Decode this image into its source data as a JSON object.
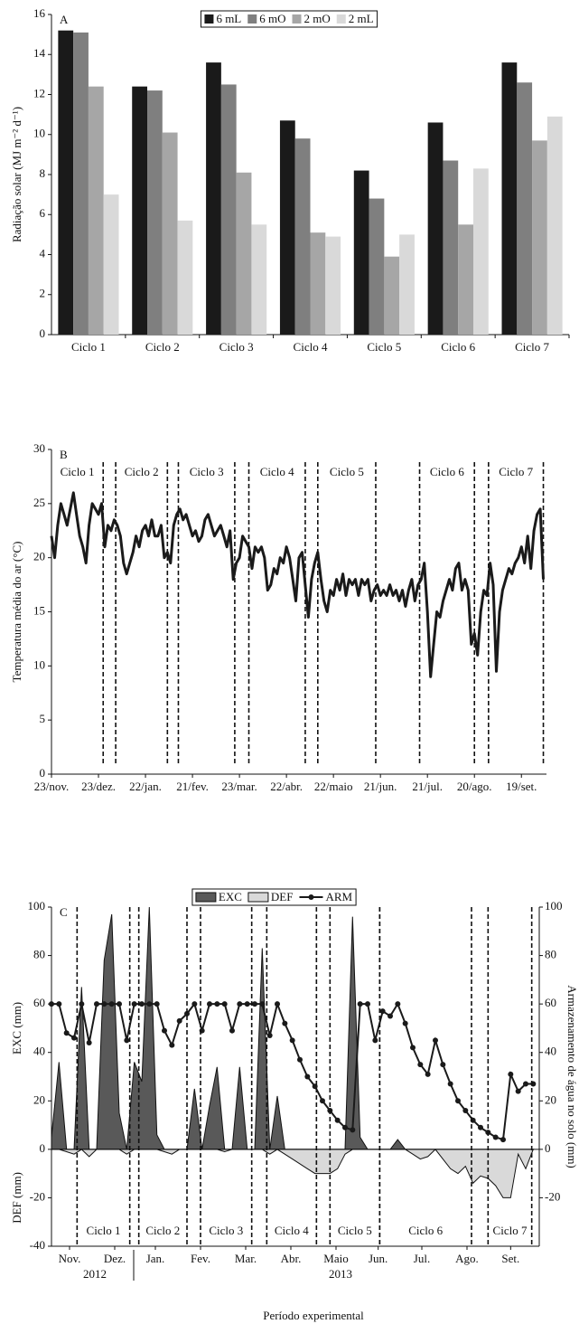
{
  "chart_data": [
    {
      "type": "bar",
      "panel_label": "A",
      "ylabel": "Radiação solar (MJ m⁻² d⁻¹)",
      "categories": [
        "Ciclo 1",
        "Ciclo 2",
        "Ciclo 3",
        "Ciclo 4",
        "Ciclo 5",
        "Ciclo 6",
        "Ciclo 7"
      ],
      "series": [
        {
          "name": "6 mL",
          "color": "#1a1a1a",
          "values": [
            15.2,
            12.4,
            13.6,
            10.7,
            8.2,
            10.6,
            13.6
          ]
        },
        {
          "name": "6 mO",
          "color": "#7f7f7f",
          "values": [
            15.1,
            12.2,
            12.5,
            9.8,
            6.8,
            8.7,
            12.6
          ]
        },
        {
          "name": "2 mO",
          "color": "#a6a6a6",
          "values": [
            12.4,
            10.1,
            8.1,
            5.1,
            3.9,
            5.5,
            9.7
          ]
        },
        {
          "name": "2 mL",
          "color": "#d9d9d9",
          "values": [
            7.0,
            5.7,
            5.5,
            4.9,
            5.0,
            8.3,
            10.9
          ]
        }
      ],
      "ylim": [
        0,
        16
      ],
      "yticks": [
        0,
        2,
        4,
        6,
        8,
        10,
        12,
        14,
        16
      ],
      "legend": "top"
    },
    {
      "type": "line",
      "panel_label": "B",
      "ylabel": "Temperatura média do ar (°C)",
      "x": [
        0,
        2,
        4,
        6,
        8,
        10,
        12,
        14,
        16,
        18,
        20,
        22,
        24,
        26,
        28,
        30,
        32,
        34,
        36,
        38,
        40,
        42,
        44,
        46,
        48,
        50,
        52,
        54,
        56,
        58,
        60,
        62,
        64,
        66,
        68,
        70,
        72,
        74,
        76,
        78,
        80,
        82,
        84,
        86,
        88,
        90,
        92,
        94,
        96,
        98,
        100,
        102,
        104,
        106,
        108,
        110,
        112,
        114,
        116,
        118,
        120,
        122,
        124,
        126,
        128,
        130,
        132,
        134,
        136,
        138,
        140,
        142,
        144,
        146,
        148,
        150,
        152,
        154,
        156,
        158,
        160,
        162,
        164,
        166,
        168,
        170,
        172,
        174,
        176,
        178,
        180,
        182,
        184,
        186,
        188,
        190,
        192,
        194,
        196,
        198,
        200,
        202,
        204,
        206,
        208,
        210,
        212,
        214,
        216,
        218,
        220,
        222,
        224,
        226,
        228,
        230,
        232,
        234,
        236,
        238,
        240,
        242,
        244,
        246,
        248,
        250,
        252,
        254,
        256,
        258,
        260,
        262,
        264,
        266,
        268,
        270,
        272,
        274,
        276,
        278,
        280,
        282,
        284,
        286,
        288,
        290,
        292,
        294,
        296,
        298,
        300,
        302,
        304,
        306,
        308,
        310,
        312,
        314
      ],
      "series": [
        {
          "color": "#1a1a1a",
          "values": [
            22,
            20,
            23,
            25,
            24,
            23,
            24.5,
            26,
            24,
            22,
            21,
            19.5,
            23,
            25,
            24.5,
            24,
            25,
            21,
            23,
            22.5,
            23.5,
            23,
            22,
            19.5,
            18.5,
            19.5,
            20.5,
            22,
            21,
            22.5,
            23,
            22,
            23.5,
            22,
            22,
            23,
            20,
            20.5,
            19.5,
            23,
            24,
            24.5,
            23.5,
            24,
            23,
            22,
            22.5,
            21.5,
            22,
            23.5,
            24,
            23,
            22,
            22.5,
            23,
            22,
            21,
            22.5,
            18,
            19.5,
            20,
            22,
            21.5,
            21,
            19,
            21,
            20.5,
            21,
            20,
            17,
            17.5,
            19,
            18.5,
            20,
            19.5,
            21,
            20,
            18,
            16,
            20,
            20.5,
            17.5,
            14.5,
            18,
            19.5,
            20.5,
            18,
            16,
            15,
            17,
            16.5,
            18,
            17,
            18.5,
            16.5,
            18,
            17.5,
            18,
            16.5,
            18,
            17.5,
            18,
            16,
            17,
            17.5,
            16.5,
            17,
            16.5,
            17.5,
            16.5,
            17,
            16,
            17,
            15.5,
            17,
            18,
            16,
            17.5,
            18,
            19.5,
            15,
            9,
            12,
            15,
            14.5,
            16,
            17,
            18,
            17,
            19,
            19.5,
            17,
            18,
            17,
            12,
            13,
            11,
            15,
            17,
            16.5,
            19.5,
            17.5,
            9.5,
            15,
            17,
            18,
            19,
            18.5,
            19.5,
            20,
            21,
            19.5,
            22,
            19,
            22.5,
            24,
            24.5,
            18
          ]
        }
      ],
      "xlim": [
        0,
        316
      ],
      "xticks": [
        {
          "value": 0,
          "label": "23/nov."
        },
        {
          "value": 30,
          "label": "23/dez."
        },
        {
          "value": 60,
          "label": "22/jan."
        },
        {
          "value": 90,
          "label": "21/fev."
        },
        {
          "value": 120,
          "label": "23/mar."
        },
        {
          "value": 150,
          "label": "22/abr."
        },
        {
          "value": 180,
          "label": "22/maio"
        },
        {
          "value": 210,
          "label": "21/jun."
        },
        {
          "value": 240,
          "label": "21/jul."
        },
        {
          "value": 270,
          "label": "20/ago."
        },
        {
          "value": 300,
          "label": "19/set."
        }
      ],
      "ylim": [
        0,
        30
      ],
      "yticks": [
        0,
        5,
        10,
        15,
        20,
        25,
        30
      ],
      "cycles": [
        {
          "label": "Ciclo 1",
          "start": 0,
          "end": 33
        },
        {
          "label": "Ciclo 2",
          "start": 41,
          "end": 74
        },
        {
          "label": "Ciclo 3",
          "start": 81,
          "end": 117
        },
        {
          "label": "Ciclo 4",
          "start": 126,
          "end": 162
        },
        {
          "label": "Ciclo 5",
          "start": 170,
          "end": 207
        },
        {
          "label": "Ciclo 6",
          "start": 235,
          "end": 270
        },
        {
          "label": "Ciclo 7",
          "start": 279,
          "end": 314
        }
      ]
    },
    {
      "type": "combo",
      "panel_label": "C",
      "ylabel": "EXC (mm)",
      "ylabel_lower": "DEF (mm)",
      "y2label": "Armazenamento de água no solo (mm)",
      "xlabel": "Período experimental",
      "years": [
        "2012",
        "2013"
      ],
      "x": [
        0,
        5,
        10,
        15,
        20,
        25,
        30,
        35,
        40,
        45,
        50,
        55,
        60,
        65,
        70,
        75,
        80,
        85,
        90,
        95,
        100,
        105,
        110,
        115,
        120,
        125,
        130,
        135,
        140,
        145,
        150,
        155,
        160,
        165,
        170,
        175,
        180,
        185,
        190,
        195,
        200,
        205,
        210,
        215,
        220,
        225,
        230,
        235,
        240,
        245,
        250,
        255,
        260,
        265,
        270,
        275,
        280,
        285,
        290,
        295,
        300,
        305,
        310,
        315,
        320
      ],
      "series": [
        {
          "name": "EXC",
          "type": "area",
          "color": "#595959",
          "values": [
            5,
            36,
            0,
            0,
            67,
            0,
            0,
            78,
            97,
            15,
            0,
            36,
            28,
            100,
            6,
            0,
            0,
            0,
            0,
            25,
            0,
            18,
            34,
            0,
            0,
            34,
            0,
            0,
            83,
            0,
            22,
            0,
            0,
            0,
            0,
            0,
            0,
            0,
            0,
            0,
            96,
            5,
            0,
            0,
            0,
            0,
            4,
            0,
            0,
            0,
            0,
            0,
            0,
            0,
            0,
            0,
            0,
            0,
            0,
            0,
            0,
            0,
            0,
            0,
            0
          ]
        },
        {
          "name": "DEF",
          "type": "area",
          "color": "#d9d9d9",
          "values": [
            0,
            0,
            -1,
            -2,
            0,
            -3,
            0,
            0,
            0,
            0,
            -2,
            0,
            0,
            0,
            0,
            -1,
            -2,
            0,
            0,
            0,
            0,
            0,
            0,
            -1,
            0,
            0,
            0,
            0,
            0,
            -2,
            0,
            -2,
            -4,
            -6,
            -8,
            -10,
            -10,
            -10,
            -8,
            -2,
            0,
            0,
            0,
            0,
            0,
            0,
            0,
            0,
            -2,
            -4,
            -3,
            0,
            -4,
            -8,
            -10,
            -7,
            -14,
            -11,
            -12,
            -15,
            -20,
            -20,
            -2,
            -8,
            0
          ]
        },
        {
          "name": "ARM",
          "type": "line",
          "axis": "y2",
          "color": "#1a1a1a",
          "values": [
            60,
            60,
            48,
            46,
            60,
            44,
            60,
            60,
            60,
            60,
            45,
            60,
            60,
            60,
            60,
            49,
            43,
            53,
            56,
            60,
            49,
            60,
            60,
            60,
            49,
            60,
            60,
            60,
            60,
            47,
            60,
            52,
            45,
            37,
            30,
            26,
            20,
            16,
            12,
            9,
            8,
            60,
            60,
            45,
            57,
            55,
            60,
            52,
            42,
            35,
            31,
            45,
            35,
            27,
            20,
            16,
            12,
            9,
            7,
            5,
            4,
            31,
            24,
            27,
            27
          ]
        }
      ],
      "xlim": [
        0,
        324
      ],
      "xticks": [
        {
          "value": 12,
          "label": "Nov."
        },
        {
          "value": 42,
          "label": "Dez."
        },
        {
          "value": 69,
          "label": "Jan."
        },
        {
          "value": 99,
          "label": "Fev."
        },
        {
          "value": 129,
          "label": "Mar."
        },
        {
          "value": 159,
          "label": "Abr."
        },
        {
          "value": 189,
          "label": "Maio"
        },
        {
          "value": 217,
          "label": "Jun."
        },
        {
          "value": 246,
          "label": "Jul."
        },
        {
          "value": 276,
          "label": "Ago."
        },
        {
          "value": 305,
          "label": "Set."
        }
      ],
      "ylim": [
        -40,
        100
      ],
      "yticks": [
        -40,
        -20,
        0,
        20,
        40,
        60,
        80,
        100
      ],
      "y2lim": [
        -40,
        100
      ],
      "y2ticks": [
        -20,
        0,
        20,
        40,
        60,
        80,
        100
      ],
      "legend": "top",
      "cycles": [
        {
          "label": "Ciclo 1",
          "start": 17,
          "end": 52
        },
        {
          "label": "Ciclo 2",
          "start": 58,
          "end": 90
        },
        {
          "label": "Ciclo 3",
          "start": 99,
          "end": 133
        },
        {
          "label": "Ciclo 4",
          "start": 143,
          "end": 176
        },
        {
          "label": "Ciclo 5",
          "start": 185,
          "end": 218
        },
        {
          "label": "Ciclo 6",
          "start": 218,
          "end": 279
        },
        {
          "label": "Ciclo 7",
          "start": 290,
          "end": 319
        }
      ]
    }
  ]
}
